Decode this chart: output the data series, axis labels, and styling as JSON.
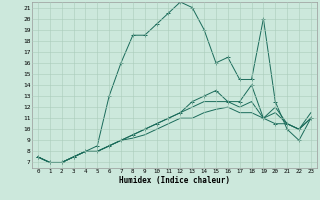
{
  "xlabel": "Humidex (Indice chaleur)",
  "bg_color": "#cce8dc",
  "grid_color": "#aaccbb",
  "line_color": "#1a6b5a",
  "xlim": [
    -0.5,
    23.5
  ],
  "ylim": [
    6.5,
    21.5
  ],
  "xticks": [
    0,
    1,
    2,
    3,
    4,
    5,
    6,
    7,
    8,
    9,
    10,
    11,
    12,
    13,
    14,
    15,
    16,
    17,
    18,
    19,
    20,
    21,
    22,
    23
  ],
  "yticks": [
    7,
    8,
    9,
    10,
    11,
    12,
    13,
    14,
    15,
    16,
    17,
    18,
    19,
    20,
    21
  ],
  "series": [
    {
      "y": [
        7.5,
        7.0,
        7.0,
        7.5,
        8.0,
        8.5,
        13.0,
        16.0,
        18.5,
        18.5,
        19.5,
        20.5,
        21.5,
        21.0,
        19.0,
        16.0,
        16.5,
        14.5,
        14.5,
        20.0,
        12.5,
        10.0,
        9.0,
        11.0
      ],
      "marker": true
    },
    {
      "y": [
        7.5,
        7.0,
        7.0,
        7.5,
        8.0,
        8.0,
        8.5,
        9.0,
        9.5,
        10.0,
        10.5,
        11.0,
        11.5,
        12.5,
        13.0,
        13.5,
        12.5,
        12.5,
        14.0,
        11.0,
        10.5,
        10.5,
        10.0,
        11.0
      ],
      "marker": true
    },
    {
      "y": [
        7.5,
        7.0,
        7.0,
        7.5,
        8.0,
        8.0,
        8.5,
        9.0,
        9.5,
        10.0,
        10.5,
        11.0,
        11.5,
        12.0,
        12.5,
        12.5,
        12.5,
        12.0,
        12.5,
        11.0,
        12.0,
        10.5,
        10.0,
        11.5
      ],
      "marker": false
    },
    {
      "y": [
        7.5,
        7.0,
        7.0,
        7.5,
        8.0,
        8.0,
        8.5,
        9.0,
        9.2,
        9.5,
        10.0,
        10.5,
        11.0,
        11.0,
        11.5,
        11.8,
        12.0,
        11.5,
        11.5,
        11.0,
        11.5,
        10.5,
        10.0,
        11.0
      ],
      "marker": false
    }
  ]
}
